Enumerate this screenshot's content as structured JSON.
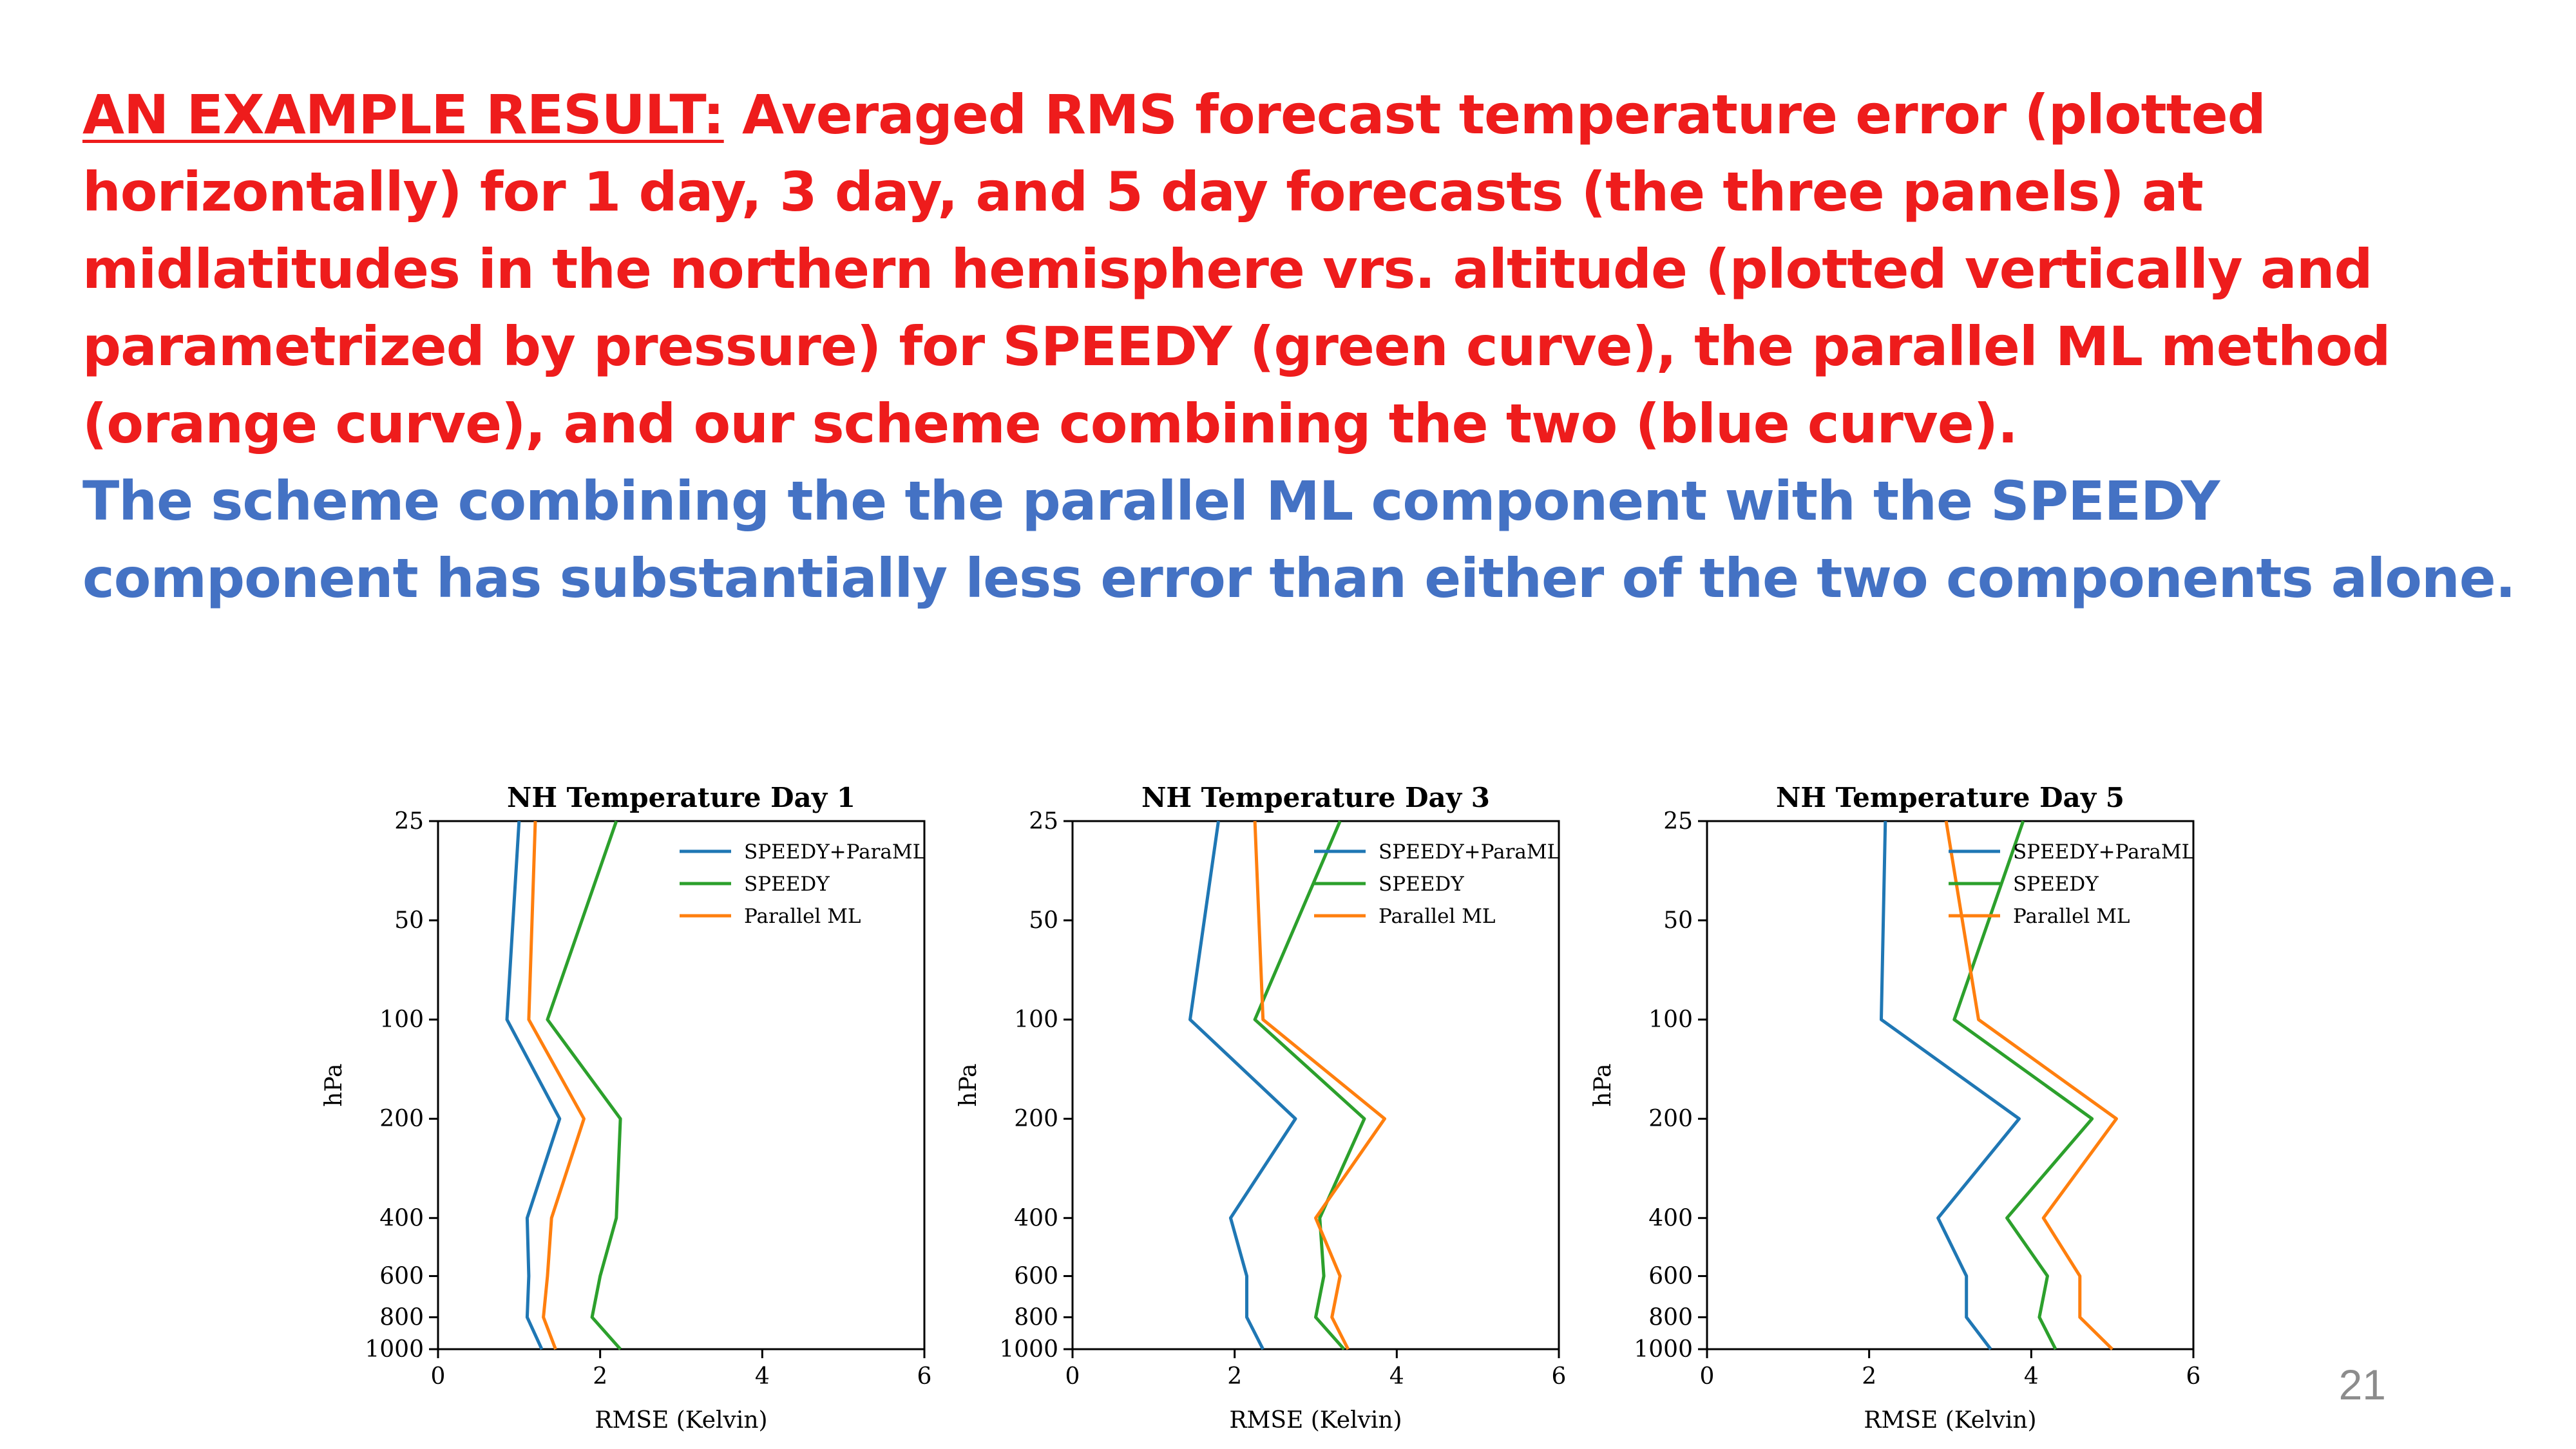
{
  "heading": {
    "label": "AN EXAMPLE RESULT:",
    "text": " Averaged RMS forecast temperature error (plotted horizontally) for 1 day, 3 day, and 5 day forecasts (the three panels) at midlatitudes in the northern hemisphere vrs. altitude (plotted vertically and parametrized by pressure) for SPEEDY (green curve), the parallel ML method (orange curve), and our scheme combining the two (blue curve).",
    "conclusion": "The scheme combining the the parallel ML component with the SPEEDY component has substantially less error than either of the two components alone.",
    "label_color": "#ee1c1c",
    "conclusion_color": "#4472c4"
  },
  "slide_number": "21",
  "chart_data": [
    {
      "type": "line",
      "title": "NH Temperature Day 1",
      "xlabel": "RMSE (Kelvin)",
      "ylabel": "hPa",
      "xlim": [
        0,
        6
      ],
      "xticks": [
        "0",
        "2",
        "4",
        "6"
      ],
      "ylim": [
        1000,
        25
      ],
      "yscale": "log",
      "yticks": [
        "25",
        "50",
        "100",
        "200",
        "400",
        "600",
        "800",
        "1000"
      ],
      "legend_position": "top-right",
      "pressure_levels": [
        25,
        100,
        200,
        400,
        600,
        800,
        1000
      ],
      "series": [
        {
          "name": "SPEEDY+ParaML",
          "color": "#1f77b4",
          "values": [
            1.0,
            0.85,
            1.5,
            1.1,
            1.12,
            1.1,
            1.28
          ]
        },
        {
          "name": "SPEEDY",
          "color": "#2ca02c",
          "values": [
            2.2,
            1.35,
            2.25,
            2.2,
            2.0,
            1.9,
            2.25
          ]
        },
        {
          "name": "Parallel ML",
          "color": "#ff7f0e",
          "values": [
            1.2,
            1.12,
            1.8,
            1.4,
            1.35,
            1.3,
            1.45
          ]
        }
      ]
    },
    {
      "type": "line",
      "title": "NH Temperature Day 3",
      "xlabel": "RMSE (Kelvin)",
      "ylabel": "hPa",
      "xlim": [
        0,
        6
      ],
      "xticks": [
        "0",
        "2",
        "4",
        "6"
      ],
      "ylim": [
        1000,
        25
      ],
      "yscale": "log",
      "yticks": [
        "25",
        "50",
        "100",
        "200",
        "400",
        "600",
        "800",
        "1000"
      ],
      "legend_position": "top-right",
      "pressure_levels": [
        25,
        100,
        200,
        400,
        600,
        800,
        1000
      ],
      "series": [
        {
          "name": "SPEEDY+ParaML",
          "color": "#1f77b4",
          "values": [
            1.8,
            1.45,
            2.75,
            1.95,
            2.15,
            2.15,
            2.35
          ]
        },
        {
          "name": "SPEEDY",
          "color": "#2ca02c",
          "values": [
            3.3,
            2.25,
            3.6,
            3.05,
            3.1,
            3.0,
            3.35
          ]
        },
        {
          "name": "Parallel ML",
          "color": "#ff7f0e",
          "values": [
            2.25,
            2.35,
            3.85,
            3.0,
            3.3,
            3.2,
            3.4
          ]
        }
      ]
    },
    {
      "type": "line",
      "title": "NH Temperature Day 5",
      "xlabel": "RMSE (Kelvin)",
      "ylabel": "hPa",
      "xlim": [
        0,
        6
      ],
      "xticks": [
        "0",
        "2",
        "4",
        "6"
      ],
      "ylim": [
        1000,
        25
      ],
      "yscale": "log",
      "yticks": [
        "25",
        "50",
        "100",
        "200",
        "400",
        "600",
        "800",
        "1000"
      ],
      "legend_position": "top-right",
      "pressure_levels": [
        25,
        100,
        200,
        400,
        600,
        800,
        1000
      ],
      "series": [
        {
          "name": "SPEEDY+ParaML",
          "color": "#1f77b4",
          "values": [
            2.2,
            2.15,
            3.85,
            2.85,
            3.2,
            3.2,
            3.5
          ]
        },
        {
          "name": "SPEEDY",
          "color": "#2ca02c",
          "values": [
            3.9,
            3.05,
            4.75,
            3.7,
            4.2,
            4.1,
            4.3
          ]
        },
        {
          "name": "Parallel ML",
          "color": "#ff7f0e",
          "values": [
            2.95,
            3.35,
            5.05,
            4.15,
            4.6,
            4.6,
            5.0
          ]
        }
      ]
    }
  ]
}
